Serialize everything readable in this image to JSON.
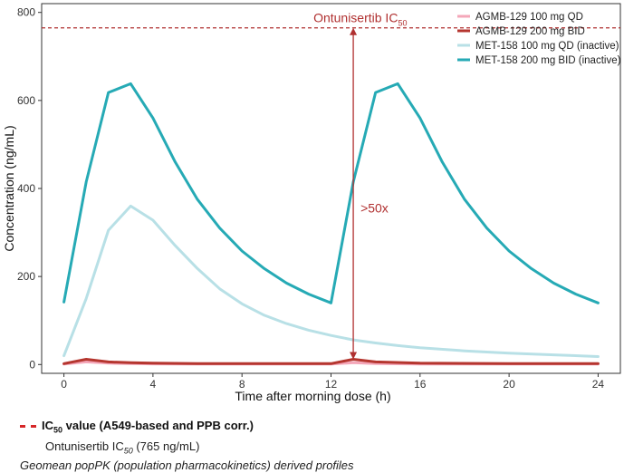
{
  "chart_data": {
    "type": "line",
    "xlabel": "Time after morning dose (h)",
    "ylabel": "Concentration (ng/mL)",
    "xlim": [
      -1,
      25
    ],
    "ylim": [
      -20,
      820
    ],
    "xticks": [
      0,
      4,
      8,
      12,
      16,
      20,
      24
    ],
    "yticks": [
      0,
      200,
      400,
      600,
      800
    ],
    "grid": false,
    "legend_position": "top-right",
    "series": [
      {
        "name": "AGMB-129 100 mg QD",
        "color": "#f4a7b9",
        "x": [
          0,
          1,
          2,
          3,
          4,
          6,
          8,
          12,
          13,
          14,
          16,
          20,
          24
        ],
        "y": [
          1,
          6,
          3,
          2,
          1.5,
          1,
          1,
          1,
          4,
          2,
          1,
          1,
          1
        ]
      },
      {
        "name": "AGMB-129 200 mg BID",
        "color": "#b5362f",
        "x": [
          0,
          1,
          2,
          3,
          4,
          6,
          8,
          12,
          13,
          14,
          16,
          20,
          24
        ],
        "y": [
          2,
          12,
          6,
          4,
          3,
          2,
          2,
          2,
          12,
          6,
          3,
          2,
          2
        ]
      },
      {
        "name": "MET-158 100 mg QD (inactive)",
        "color": "#b8e0e6",
        "x": [
          0,
          1,
          2,
          3,
          4,
          5,
          6,
          7,
          8,
          9,
          10,
          11,
          12,
          13,
          14,
          15,
          16,
          18,
          20,
          22,
          24
        ],
        "y": [
          20,
          150,
          305,
          360,
          328,
          270,
          218,
          172,
          138,
          112,
          93,
          78,
          66,
          56,
          49,
          43,
          38,
          31,
          26,
          22,
          18
        ]
      },
      {
        "name": "MET-158 200 mg BID (inactive)",
        "color": "#26aab5",
        "x": [
          0,
          1,
          2,
          3,
          4,
          5,
          6,
          7,
          8,
          9,
          10,
          11,
          12,
          13,
          14,
          15,
          16,
          17,
          18,
          19,
          20,
          21,
          22,
          23,
          24
        ],
        "y": [
          142,
          415,
          618,
          638,
          560,
          460,
          375,
          310,
          258,
          218,
          185,
          160,
          140,
          415,
          618,
          638,
          560,
          460,
          375,
          310,
          258,
          218,
          185,
          160,
          140
        ]
      }
    ],
    "reference_line": {
      "value": 765,
      "color": "#b03030"
    },
    "annotations": {
      "ic50_label": "Ontunisertib IC",
      "ic50_label_sub": "50",
      "fold_label": ">50x",
      "arrow_x": 13
    }
  },
  "footer": {
    "legend_title": "IC",
    "legend_title_sub": "50",
    "legend_title_rest": " value (A549-based and PPB corr.)",
    "legend_sub_prefix": "Ontunisertib IC",
    "legend_sub_sub": "50",
    "legend_sub_rest": " (765 ng/mL)",
    "note": "Geomean popPK (population pharmacokinetics) derived profiles"
  }
}
